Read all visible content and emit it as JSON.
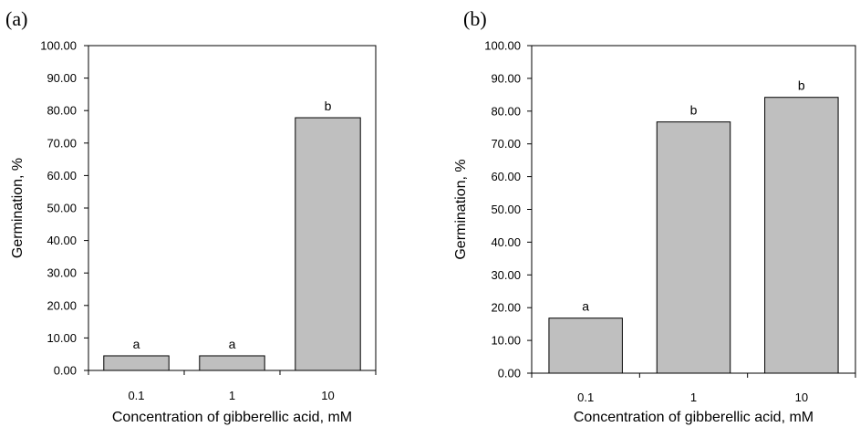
{
  "chart_data": [
    {
      "type": "bar",
      "panel_label": "(a)",
      "categories": [
        "0.1",
        "1",
        "10"
      ],
      "values": [
        4.5,
        4.5,
        77.8
      ],
      "data_labels": [
        "a",
        "a",
        "b"
      ],
      "xlabel": "Concentration of gibberellic acid, mM",
      "ylabel": "Germination, %",
      "ylim": [
        0,
        100
      ],
      "yticks": [
        "0.00",
        "10.00",
        "20.00",
        "30.00",
        "40.00",
        "50.00",
        "60.00",
        "70.00",
        "80.00",
        "90.00",
        "100.00"
      ],
      "grid": false,
      "bar_color": "#bfbfbf"
    },
    {
      "type": "bar",
      "panel_label": "(b)",
      "categories": [
        "0.1",
        "1",
        "10"
      ],
      "values": [
        16.8,
        76.7,
        84.2
      ],
      "data_labels": [
        "a",
        "b",
        "b"
      ],
      "xlabel": "Concentration of gibberellic acid, mM",
      "ylabel": "Germination, %",
      "ylim": [
        0,
        100
      ],
      "yticks": [
        "0.00",
        "10.00",
        "20.00",
        "30.00",
        "40.00",
        "50.00",
        "60.00",
        "70.00",
        "80.00",
        "90.00",
        "100.00"
      ],
      "grid": false,
      "bar_color": "#bfbfbf"
    }
  ]
}
